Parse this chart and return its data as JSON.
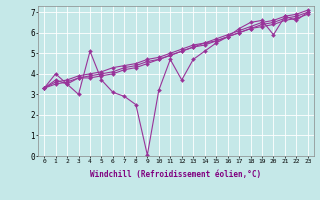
{
  "xlabel": "Windchill (Refroidissement éolien,°C)",
  "bg_color": "#c5e8e8",
  "line_color": "#993399",
  "xlim": [
    -0.5,
    23.5
  ],
  "ylim": [
    0,
    7.3
  ],
  "xticks": [
    0,
    1,
    2,
    3,
    4,
    5,
    6,
    7,
    8,
    9,
    10,
    11,
    12,
    13,
    14,
    15,
    16,
    17,
    18,
    19,
    20,
    21,
    22,
    23
  ],
  "yticks": [
    0,
    1,
    2,
    3,
    4,
    5,
    6,
    7
  ],
  "series": [
    [
      3.3,
      4.0,
      3.5,
      3.0,
      5.1,
      3.7,
      3.1,
      2.9,
      2.5,
      0.05,
      3.2,
      4.7,
      3.7,
      4.7,
      5.1,
      5.5,
      5.8,
      6.2,
      6.5,
      6.6,
      5.9,
      6.8,
      6.6,
      7.0
    ],
    [
      3.3,
      3.7,
      3.5,
      3.8,
      3.8,
      3.9,
      4.0,
      4.2,
      4.3,
      4.5,
      4.7,
      4.9,
      5.1,
      5.3,
      5.5,
      5.6,
      5.8,
      6.0,
      6.2,
      6.3,
      6.4,
      6.6,
      6.7,
      6.9
    ],
    [
      3.3,
      3.6,
      3.7,
      3.9,
      4.0,
      4.1,
      4.3,
      4.4,
      4.5,
      4.7,
      4.8,
      5.0,
      5.2,
      5.4,
      5.5,
      5.7,
      5.9,
      6.1,
      6.3,
      6.5,
      6.6,
      6.8,
      6.9,
      7.1
    ],
    [
      3.3,
      3.5,
      3.6,
      3.8,
      3.9,
      4.0,
      4.1,
      4.3,
      4.4,
      4.6,
      4.7,
      4.9,
      5.1,
      5.3,
      5.4,
      5.6,
      5.8,
      6.0,
      6.2,
      6.4,
      6.5,
      6.7,
      6.8,
      7.0
    ]
  ],
  "marker": "D",
  "markersize": 2.0,
  "linewidth": 0.8
}
